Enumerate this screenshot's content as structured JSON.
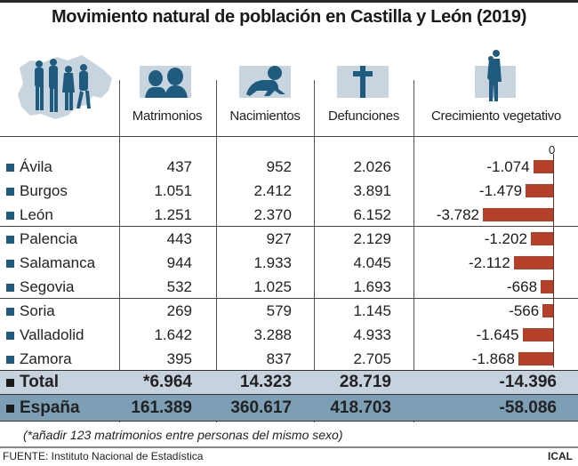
{
  "title": "Movimiento natural de población en Castilla y León (2019)",
  "headers": {
    "matrimonios": "Matrimonios",
    "nacimientos": "Nacimientos",
    "defunciones": "Defunciones",
    "crecimiento": "Crecimiento vegetativo"
  },
  "icons": {
    "region": "castilla-leon-map-with-people-icon",
    "matrimonios": "couple-heads-icon",
    "nacimientos": "crawling-baby-icon",
    "defunciones": "cross-icon",
    "crecimiento": "parent-holding-child-icon"
  },
  "colors": {
    "icon_blue": "#1f5b7e",
    "icon_bg": "#c8d4de",
    "bar_red": "#b5402a",
    "total_band": "#c6d3de",
    "spain_band": "#7d9fb6"
  },
  "zero_label": "0",
  "rows": [
    {
      "name": "Ávila",
      "matrimonios": "437",
      "nacimientos": "952",
      "defunciones": "2.026",
      "crecimiento": "-1.074"
    },
    {
      "name": "Burgos",
      "matrimonios": "1.051",
      "nacimientos": "2.412",
      "defunciones": "3.891",
      "crecimiento": "-1.479"
    },
    {
      "name": "León",
      "matrimonios": "1.251",
      "nacimientos": "2.370",
      "defunciones": "6.152",
      "crecimiento": "-3.782"
    },
    {
      "name": "Palencia",
      "matrimonios": "443",
      "nacimientos": "927",
      "defunciones": "2.129",
      "crecimiento": "-1.202"
    },
    {
      "name": "Salamanca",
      "matrimonios": "944",
      "nacimientos": "1.933",
      "defunciones": "4.045",
      "crecimiento": "-2.112"
    },
    {
      "name": "Segovia",
      "matrimonios": "532",
      "nacimientos": "1.025",
      "defunciones": "1.693",
      "crecimiento": "-668"
    },
    {
      "name": "Soria",
      "matrimonios": "269",
      "nacimientos": "579",
      "defunciones": "1.145",
      "crecimiento": "-566"
    },
    {
      "name": "Valladolid",
      "matrimonios": "1.642",
      "nacimientos": "3.288",
      "defunciones": "4.933",
      "crecimiento": "-1.645"
    },
    {
      "name": "Zamora",
      "matrimonios": "395",
      "nacimientos": "837",
      "defunciones": "2.705",
      "crecimiento": "-1.868"
    }
  ],
  "total": {
    "name": "Total",
    "matrimonios": "*6.964",
    "nacimientos": "14.323",
    "defunciones": "28.719",
    "crecimiento": "-14.396"
  },
  "spain": {
    "name": "España",
    "matrimonios": "161.389",
    "nacimientos": "360.617",
    "defunciones": "418.703",
    "crecimiento": "-58.086"
  },
  "footnote": "(*añadir 123 matrimonios entre personas del mismo sexo)",
  "source": "FUENTE: Instituto Nacional de Estadística",
  "credit": "ICAL",
  "chart_data": {
    "type": "bar",
    "orientation": "horizontal",
    "title": "Crecimiento vegetativo",
    "categories": [
      "Ávila",
      "Burgos",
      "León",
      "Palencia",
      "Salamanca",
      "Segovia",
      "Soria",
      "Valladolid",
      "Zamora"
    ],
    "values": [
      -1074,
      -1479,
      -3782,
      -1202,
      -2112,
      -668,
      -566,
      -1645,
      -1868
    ],
    "axis_label": "0",
    "xlim": [
      -3782,
      0
    ],
    "grid": false,
    "legend": "none"
  }
}
